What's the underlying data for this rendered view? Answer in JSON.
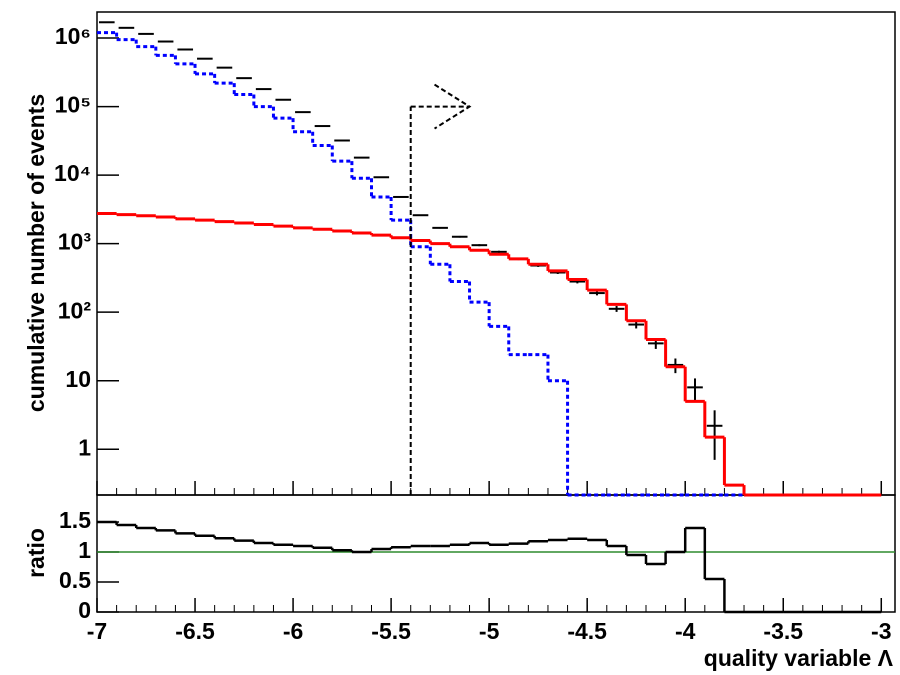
{
  "chart_data": {
    "type": "step-histogram",
    "ylabel": "cumulative number of events",
    "ratio_label": "ratio",
    "xlabel": "quality variable Λ",
    "xlim": [
      -7,
      -2.93
    ],
    "xticks": [
      -7,
      -6.5,
      -6,
      -5.5,
      -5,
      -4.5,
      -4,
      -3.5,
      -3
    ],
    "ylim": [
      0.215,
      2400000
    ],
    "log_y": true,
    "yticks": [
      1,
      10,
      {
        "value": 100,
        "label": "10²"
      },
      {
        "value": 1000,
        "label": "10³"
      },
      {
        "value": 10000,
        "label": "10⁴"
      },
      {
        "value": 100000,
        "label": "10⁵"
      },
      {
        "value": 1000000,
        "label": "10⁶"
      }
    ],
    "ratio_ylim": [
      0,
      1.95
    ],
    "ratio_yticks": [
      0,
      0.5,
      1,
      1.5
    ],
    "ratio_ref_line": 1,
    "ratio_ref_color": "#2e8b2e",
    "bins": [
      -7,
      -6.9,
      -6.8,
      -6.7,
      -6.6,
      -6.5,
      -6.4,
      -6.3,
      -6.2,
      -6.1,
      -6,
      -5.9,
      -5.8,
      -5.7,
      -5.6,
      -5.5,
      -5.4,
      -5.3,
      -5.2,
      -5.1,
      -5,
      -4.9,
      -4.8,
      -4.7,
      -4.6,
      -4.5,
      -4.4,
      -4.3,
      -4.2,
      -4.1,
      -4,
      -3.9,
      -3.8,
      -3.7,
      -3.6,
      -3.5,
      -3.4,
      -3.3,
      -3.2,
      -3.1,
      -3
    ],
    "series": [
      {
        "style": "points",
        "color": "#000000",
        "values": [
          1700000,
          1410000,
          1150000,
          890000,
          680000,
          500000,
          370000,
          260000,
          180000,
          126000,
          83000,
          52000,
          32000,
          18000,
          9300,
          4800,
          2600,
          1700,
          1260,
          950,
          760,
          600,
          480,
          380,
          280,
          190,
          112,
          66,
          35,
          17,
          8,
          2.2,
          0,
          0,
          0,
          0,
          0,
          0,
          0,
          0
        ],
        "errors": [
          1304,
          1187,
          1072,
          943,
          825,
          707,
          608,
          510,
          424,
          355,
          288,
          228,
          179,
          134,
          96,
          69,
          51,
          41,
          35,
          31,
          28,
          24,
          22,
          19,
          17,
          14,
          11,
          8.1,
          5.9,
          4.1,
          2.8,
          1.5,
          0,
          0,
          0,
          0,
          0,
          0,
          0,
          0
        ]
      },
      {
        "style": "dotted",
        "color": "#0000ff",
        "values": [
          1200000,
          950000,
          750000,
          560000,
          420000,
          300000,
          220000,
          150000,
          100000,
          68000,
          43000,
          27000,
          16000,
          9000,
          4800,
          2200,
          900,
          500,
          280,
          140,
          62,
          24,
          24,
          10,
          0,
          0,
          0,
          0,
          0,
          0,
          0,
          0,
          0,
          0,
          0,
          0,
          0,
          0,
          0,
          0
        ]
      },
      {
        "style": "solid",
        "color": "#ff0000",
        "values": [
          2750,
          2650,
          2550,
          2450,
          2300,
          2200,
          2100,
          2000,
          1900,
          1800,
          1700,
          1620,
          1530,
          1430,
          1330,
          1220,
          1110,
          1000,
          900,
          800,
          700,
          600,
          500,
          400,
          300,
          210,
          130,
          75,
          40,
          16,
          5,
          1.5,
          0.3,
          0,
          0,
          0,
          0,
          0,
          0,
          0
        ]
      }
    ],
    "ratio": {
      "color": "#000000",
      "values": [
        1.5,
        1.45,
        1.4,
        1.36,
        1.31,
        1.27,
        1.23,
        1.19,
        1.15,
        1.12,
        1.1,
        1.07,
        1.03,
        1.0,
        1.05,
        1.08,
        1.1,
        1.1,
        1.12,
        1.15,
        1.12,
        1.14,
        1.18,
        1.2,
        1.22,
        1.2,
        1.1,
        0.95,
        0.8,
        1.0,
        1.4,
        0.55,
        0,
        0,
        0,
        0,
        0,
        0,
        0,
        0
      ]
    },
    "cut": {
      "x": -5.4,
      "arrow_to": -5.1,
      "arrow_y": 100000
    }
  }
}
